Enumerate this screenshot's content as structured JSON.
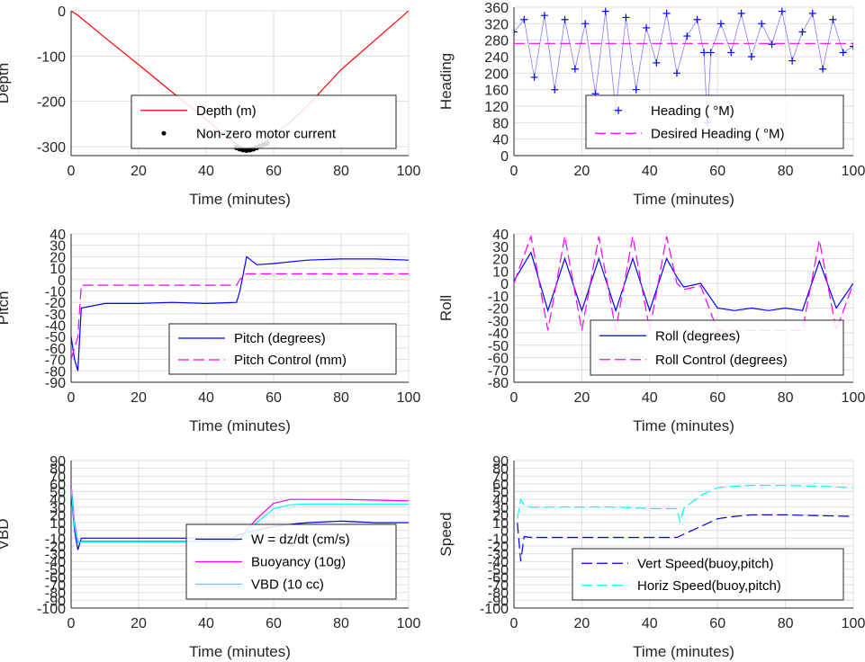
{
  "figure": {
    "colors": {
      "red": "#ff0000",
      "blue": "#0000ff",
      "magenta": "#ff00ff",
      "cyan": "#00ffff",
      "black": "#000000",
      "grid": "#dfdfdf"
    }
  },
  "chart_data": [
    {
      "type": "line",
      "xlabel": "Time (minutes)",
      "ylabel": "Depth",
      "xlim": [
        0,
        100
      ],
      "ylim": [
        -320,
        0
      ],
      "xticks": [
        0,
        20,
        40,
        60,
        80,
        100
      ],
      "yticks": [
        0,
        -100,
        -200,
        -300
      ],
      "grid": true,
      "legend_position": "lower-right",
      "series": [
        {
          "name": "Depth (m)",
          "color": "#ff0000",
          "style": "solid",
          "x": [
            0,
            1,
            2,
            10,
            20,
            30,
            40,
            48,
            52,
            56,
            60,
            65,
            70,
            75,
            80,
            90,
            100
          ],
          "y": [
            0,
            -5,
            -10,
            -59,
            -119,
            -180,
            -240,
            -290,
            -307,
            -300,
            -275,
            -245,
            -210,
            -170,
            -130,
            -65,
            0
          ]
        },
        {
          "name": "Non-zero motor current",
          "color": "#000000",
          "style": "dots",
          "x": [
            49,
            50,
            51,
            52,
            53,
            54,
            55,
            56,
            57,
            58
          ],
          "y": [
            -302,
            -305,
            -307,
            -308,
            -307,
            -305,
            -302,
            -299,
            -296,
            -293
          ]
        }
      ]
    },
    {
      "type": "line",
      "xlabel": "Time (minutes)",
      "ylabel": "Heading",
      "xlim": [
        0,
        100
      ],
      "ylim": [
        0,
        360
      ],
      "xticks": [
        0,
        20,
        40,
        60,
        80,
        100
      ],
      "yticks": [
        0,
        40,
        80,
        120,
        160,
        200,
        240,
        280,
        320,
        360
      ],
      "grid": true,
      "legend_position": "lower-right",
      "series": [
        {
          "name": "Heading ( °M)",
          "color": "#0000ff",
          "style": "plus",
          "x": [
            0,
            3,
            6,
            9,
            12,
            15,
            18,
            21,
            24,
            27,
            30,
            33,
            36,
            39,
            42,
            45,
            48,
            51,
            54,
            56,
            57,
            58,
            61,
            64,
            67,
            70,
            73,
            76,
            79,
            82,
            85,
            88,
            91,
            94,
            97,
            100
          ],
          "y": [
            300,
            330,
            190,
            340,
            160,
            330,
            210,
            320,
            150,
            350,
            110,
            335,
            160,
            310,
            225,
            345,
            200,
            290,
            330,
            250,
            80,
            250,
            320,
            250,
            345,
            240,
            320,
            270,
            350,
            230,
            300,
            345,
            210,
            330,
            250,
            265
          ]
        },
        {
          "name": "Desired Heading ( °M)",
          "color": "#ff00ff",
          "style": "dashed",
          "x": [
            0,
            100
          ],
          "y": [
            272,
            272
          ]
        }
      ]
    },
    {
      "type": "line",
      "xlabel": "Time (minutes)",
      "ylabel": "Pitch",
      "xlim": [
        0,
        100
      ],
      "ylim": [
        -90,
        40
      ],
      "xticks": [
        0,
        20,
        40,
        60,
        80,
        100
      ],
      "yticks": [
        40,
        30,
        20,
        10,
        0,
        -10,
        -20,
        -30,
        -40,
        -50,
        -60,
        -70,
        -80,
        -90
      ],
      "grid": true,
      "legend_position": "lower-right",
      "series": [
        {
          "name": "Pitch (degrees)",
          "color": "#0000ff",
          "style": "solid",
          "x": [
            0,
            1,
            2,
            3,
            10,
            20,
            30,
            40,
            49,
            50,
            51,
            52,
            55,
            60,
            70,
            80,
            90,
            100
          ],
          "y": [
            -50,
            -70,
            -80,
            -25,
            -21,
            -21,
            -20,
            -21,
            -20,
            -10,
            5,
            20,
            13,
            14,
            17,
            18,
            18,
            17
          ]
        },
        {
          "name": "Pitch Control (mm)",
          "color": "#ff00ff",
          "style": "dashed",
          "x": [
            0,
            1,
            2,
            3,
            10,
            49,
            50,
            52,
            60,
            100
          ],
          "y": [
            -70,
            -60,
            -50,
            -5,
            -5,
            -5,
            0,
            5,
            5,
            5
          ]
        }
      ]
    },
    {
      "type": "line",
      "xlabel": "Time (minutes)",
      "ylabel": "Roll",
      "xlim": [
        0,
        100
      ],
      "ylim": [
        -80,
        40
      ],
      "xticks": [
        0,
        20,
        40,
        60,
        80,
        100
      ],
      "yticks": [
        40,
        30,
        20,
        10,
        0,
        -10,
        -20,
        -30,
        -40,
        -50,
        -60,
        -70,
        -80
      ],
      "grid": true,
      "legend_position": "lower-right",
      "series": [
        {
          "name": "Roll (degrees)",
          "color": "#0000ff",
          "style": "solid",
          "x": [
            0,
            5,
            10,
            15,
            20,
            25,
            30,
            35,
            40,
            45,
            48,
            50,
            55,
            60,
            65,
            70,
            75,
            80,
            85,
            90,
            95,
            100
          ],
          "y": [
            2,
            25,
            -22,
            20,
            -22,
            20,
            -22,
            20,
            -22,
            20,
            5,
            -3,
            0,
            -20,
            -22,
            -20,
            -22,
            -20,
            -22,
            18,
            -20,
            0
          ]
        },
        {
          "name": "Roll Control (degrees)",
          "color": "#ff00ff",
          "style": "dashed",
          "x": [
            0,
            5,
            10,
            15,
            20,
            25,
            30,
            35,
            40,
            45,
            48,
            50,
            55,
            60,
            65,
            70,
            75,
            80,
            85,
            90,
            95,
            100
          ],
          "y": [
            0,
            38,
            -38,
            38,
            -38,
            38,
            -38,
            38,
            -38,
            38,
            0,
            -5,
            -2,
            -38,
            -38,
            -38,
            -38,
            -38,
            -38,
            35,
            -38,
            0
          ]
        }
      ]
    },
    {
      "type": "line",
      "xlabel": "Time (minutes)",
      "ylabel": "VBD",
      "xlim": [
        0,
        100
      ],
      "ylim": [
        -100,
        90
      ],
      "xticks": [
        0,
        20,
        40,
        60,
        80,
        100
      ],
      "yticks": [
        90,
        80,
        70,
        60,
        50,
        40,
        30,
        20,
        10,
        0,
        -10,
        -20,
        -30,
        -40,
        -50,
        -60,
        -70,
        -80,
        -90,
        -100
      ],
      "grid": true,
      "legend_position": "lower-right",
      "series": [
        {
          "name": "W = dz/dt (cm/s)",
          "color": "#0000ff",
          "style": "solid",
          "x": [
            0,
            1,
            2,
            3,
            10,
            20,
            30,
            40,
            48,
            50,
            55,
            60,
            65,
            70,
            80,
            90,
            100
          ],
          "y": [
            50,
            0,
            -25,
            -10,
            -10,
            -10,
            -10,
            -10,
            -10,
            -5,
            0,
            5,
            8,
            10,
            12,
            10,
            10
          ]
        },
        {
          "name": "Buoyancy (10g)",
          "color": "#ff00ff",
          "style": "solid",
          "x": [
            0,
            1,
            2,
            3,
            10,
            20,
            30,
            40,
            48,
            50,
            55,
            60,
            65,
            70,
            80,
            90,
            100
          ],
          "y": [
            60,
            10,
            -15,
            -14,
            -14,
            -14,
            -14,
            -14,
            -14,
            -10,
            15,
            35,
            40,
            40,
            40,
            39,
            38
          ]
        },
        {
          "name": "VBD (10 cc)",
          "color": "#00ffff",
          "style": "solid",
          "x": [
            0,
            1,
            2,
            3,
            10,
            20,
            30,
            40,
            48,
            50,
            55,
            60,
            65,
            70,
            80,
            90,
            100
          ],
          "y": [
            55,
            5,
            -16,
            -15,
            -15,
            -15,
            -15,
            -15,
            -15,
            -12,
            10,
            28,
            33,
            34,
            34,
            34,
            34
          ]
        }
      ]
    },
    {
      "type": "line",
      "xlabel": "Time (minutes)",
      "ylabel": "Speed",
      "xlim": [
        0,
        100
      ],
      "ylim": [
        -100,
        90
      ],
      "xticks": [
        0,
        20,
        40,
        60,
        80,
        100
      ],
      "yticks": [
        90,
        80,
        70,
        60,
        50,
        40,
        30,
        20,
        10,
        0,
        -10,
        -20,
        -30,
        -40,
        -50,
        -60,
        -70,
        -80,
        -90,
        -100
      ],
      "grid": true,
      "legend_position": "lower-right",
      "series": [
        {
          "name": "Vert Speed(buoy,pitch)",
          "color": "#0000ff",
          "style": "dashed",
          "x": [
            1,
            2,
            3,
            5,
            10,
            20,
            30,
            40,
            48,
            50,
            55,
            60,
            65,
            70,
            80,
            90,
            100
          ],
          "y": [
            10,
            -40,
            -8,
            -9,
            -9,
            -9,
            -9,
            -9,
            -9,
            -5,
            5,
            15,
            18,
            20,
            20,
            19,
            18
          ]
        },
        {
          "name": "Horiz Speed(buoy,pitch)",
          "color": "#00ffff",
          "style": "dashed",
          "x": [
            1,
            2,
            3,
            5,
            10,
            20,
            30,
            40,
            48,
            49,
            50,
            55,
            60,
            65,
            70,
            80,
            90,
            100
          ],
          "y": [
            15,
            40,
            33,
            30,
            30,
            30,
            30,
            28,
            28,
            10,
            28,
            45,
            55,
            57,
            58,
            58,
            57,
            55
          ]
        }
      ]
    }
  ]
}
